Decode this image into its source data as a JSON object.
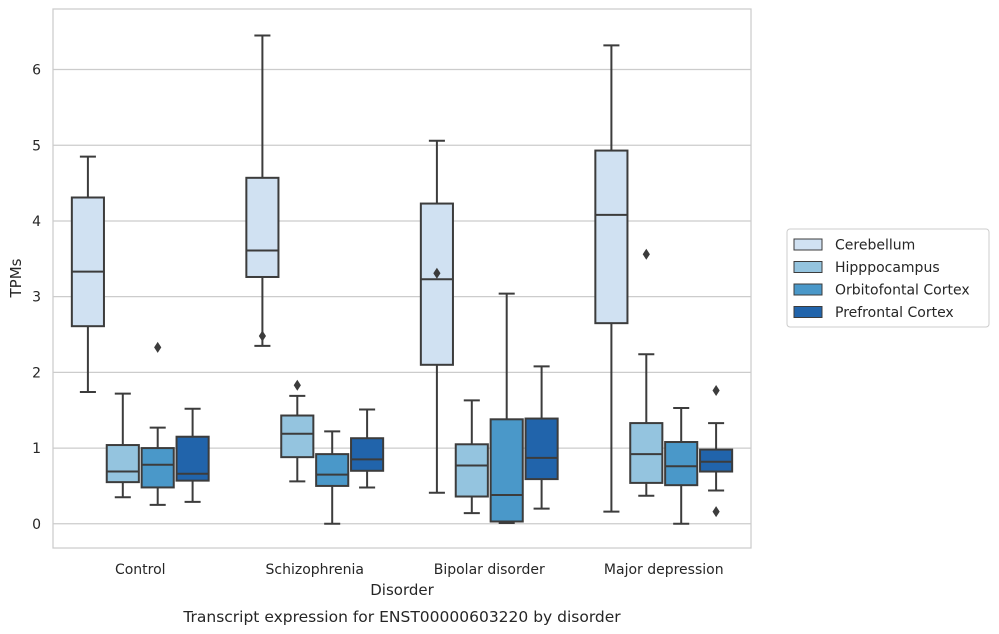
{
  "chart_data": {
    "type": "box",
    "caption": "Transcript expression for ENST00000603220 by disorder",
    "xlabel": "Disorder",
    "ylabel": "TPMs",
    "ylim": [
      -0.32,
      6.8
    ],
    "yticks": [
      0,
      1,
      2,
      3,
      4,
      5,
      6
    ],
    "grid": "horizontal",
    "legend_position": "right",
    "categories": [
      "Control",
      "Schizophrenia",
      "Bipolar disorder",
      "Major depression"
    ],
    "series": [
      {
        "name": "Cerebellum",
        "color": "#d0e1f2",
        "boxes": [
          {
            "whislo": 1.74,
            "q1": 2.61,
            "med": 3.33,
            "q3": 4.31,
            "whishi": 4.85,
            "fliers": []
          },
          {
            "whislo": 2.35,
            "q1": 3.26,
            "med": 3.61,
            "q3": 4.57,
            "whishi": 6.45,
            "fliers": [
              2.48
            ]
          },
          {
            "whislo": 0.41,
            "q1": 2.1,
            "med": 3.23,
            "q3": 4.23,
            "whishi": 5.06,
            "fliers": [
              3.31
            ]
          },
          {
            "whislo": 0.16,
            "q1": 2.65,
            "med": 4.08,
            "q3": 4.93,
            "whishi": 6.32,
            "fliers": []
          }
        ]
      },
      {
        "name": "Hipppocampus",
        "color": "#94c4df",
        "boxes": [
          {
            "whislo": 0.35,
            "q1": 0.55,
            "med": 0.69,
            "q3": 1.04,
            "whishi": 1.72,
            "fliers": []
          },
          {
            "whislo": 0.56,
            "q1": 0.88,
            "med": 1.19,
            "q3": 1.43,
            "whishi": 1.69,
            "fliers": [
              1.83
            ]
          },
          {
            "whislo": 0.14,
            "q1": 0.36,
            "med": 0.77,
            "q3": 1.05,
            "whishi": 1.63,
            "fliers": []
          },
          {
            "whislo": 0.37,
            "q1": 0.54,
            "med": 0.92,
            "q3": 1.33,
            "whishi": 2.24,
            "fliers": [
              3.56
            ]
          }
        ]
      },
      {
        "name": "Orbitofontal Cortex",
        "color": "#4a98c9",
        "boxes": [
          {
            "whislo": 0.25,
            "q1": 0.48,
            "med": 0.78,
            "q3": 1.0,
            "whishi": 1.27,
            "fliers": [
              2.33
            ]
          },
          {
            "whislo": 0.0,
            "q1": 0.5,
            "med": 0.65,
            "q3": 0.92,
            "whishi": 1.22,
            "fliers": []
          },
          {
            "whislo": 0.01,
            "q1": 0.03,
            "med": 0.38,
            "q3": 1.38,
            "whishi": 3.04,
            "fliers": []
          },
          {
            "whislo": 0.0,
            "q1": 0.51,
            "med": 0.76,
            "q3": 1.08,
            "whishi": 1.53,
            "fliers": []
          }
        ]
      },
      {
        "name": "Prefrontal Cortex",
        "color": "#2164ab",
        "boxes": [
          {
            "whislo": 0.29,
            "q1": 0.57,
            "med": 0.66,
            "q3": 1.15,
            "whishi": 1.52,
            "fliers": []
          },
          {
            "whislo": 0.48,
            "q1": 0.7,
            "med": 0.85,
            "q3": 1.13,
            "whishi": 1.51,
            "fliers": []
          },
          {
            "whislo": 0.2,
            "q1": 0.59,
            "med": 0.87,
            "q3": 1.39,
            "whishi": 2.08,
            "fliers": []
          },
          {
            "whislo": 0.44,
            "q1": 0.69,
            "med": 0.82,
            "q3": 0.98,
            "whishi": 1.33,
            "fliers": [
              0.16,
              1.76
            ]
          }
        ]
      }
    ]
  }
}
